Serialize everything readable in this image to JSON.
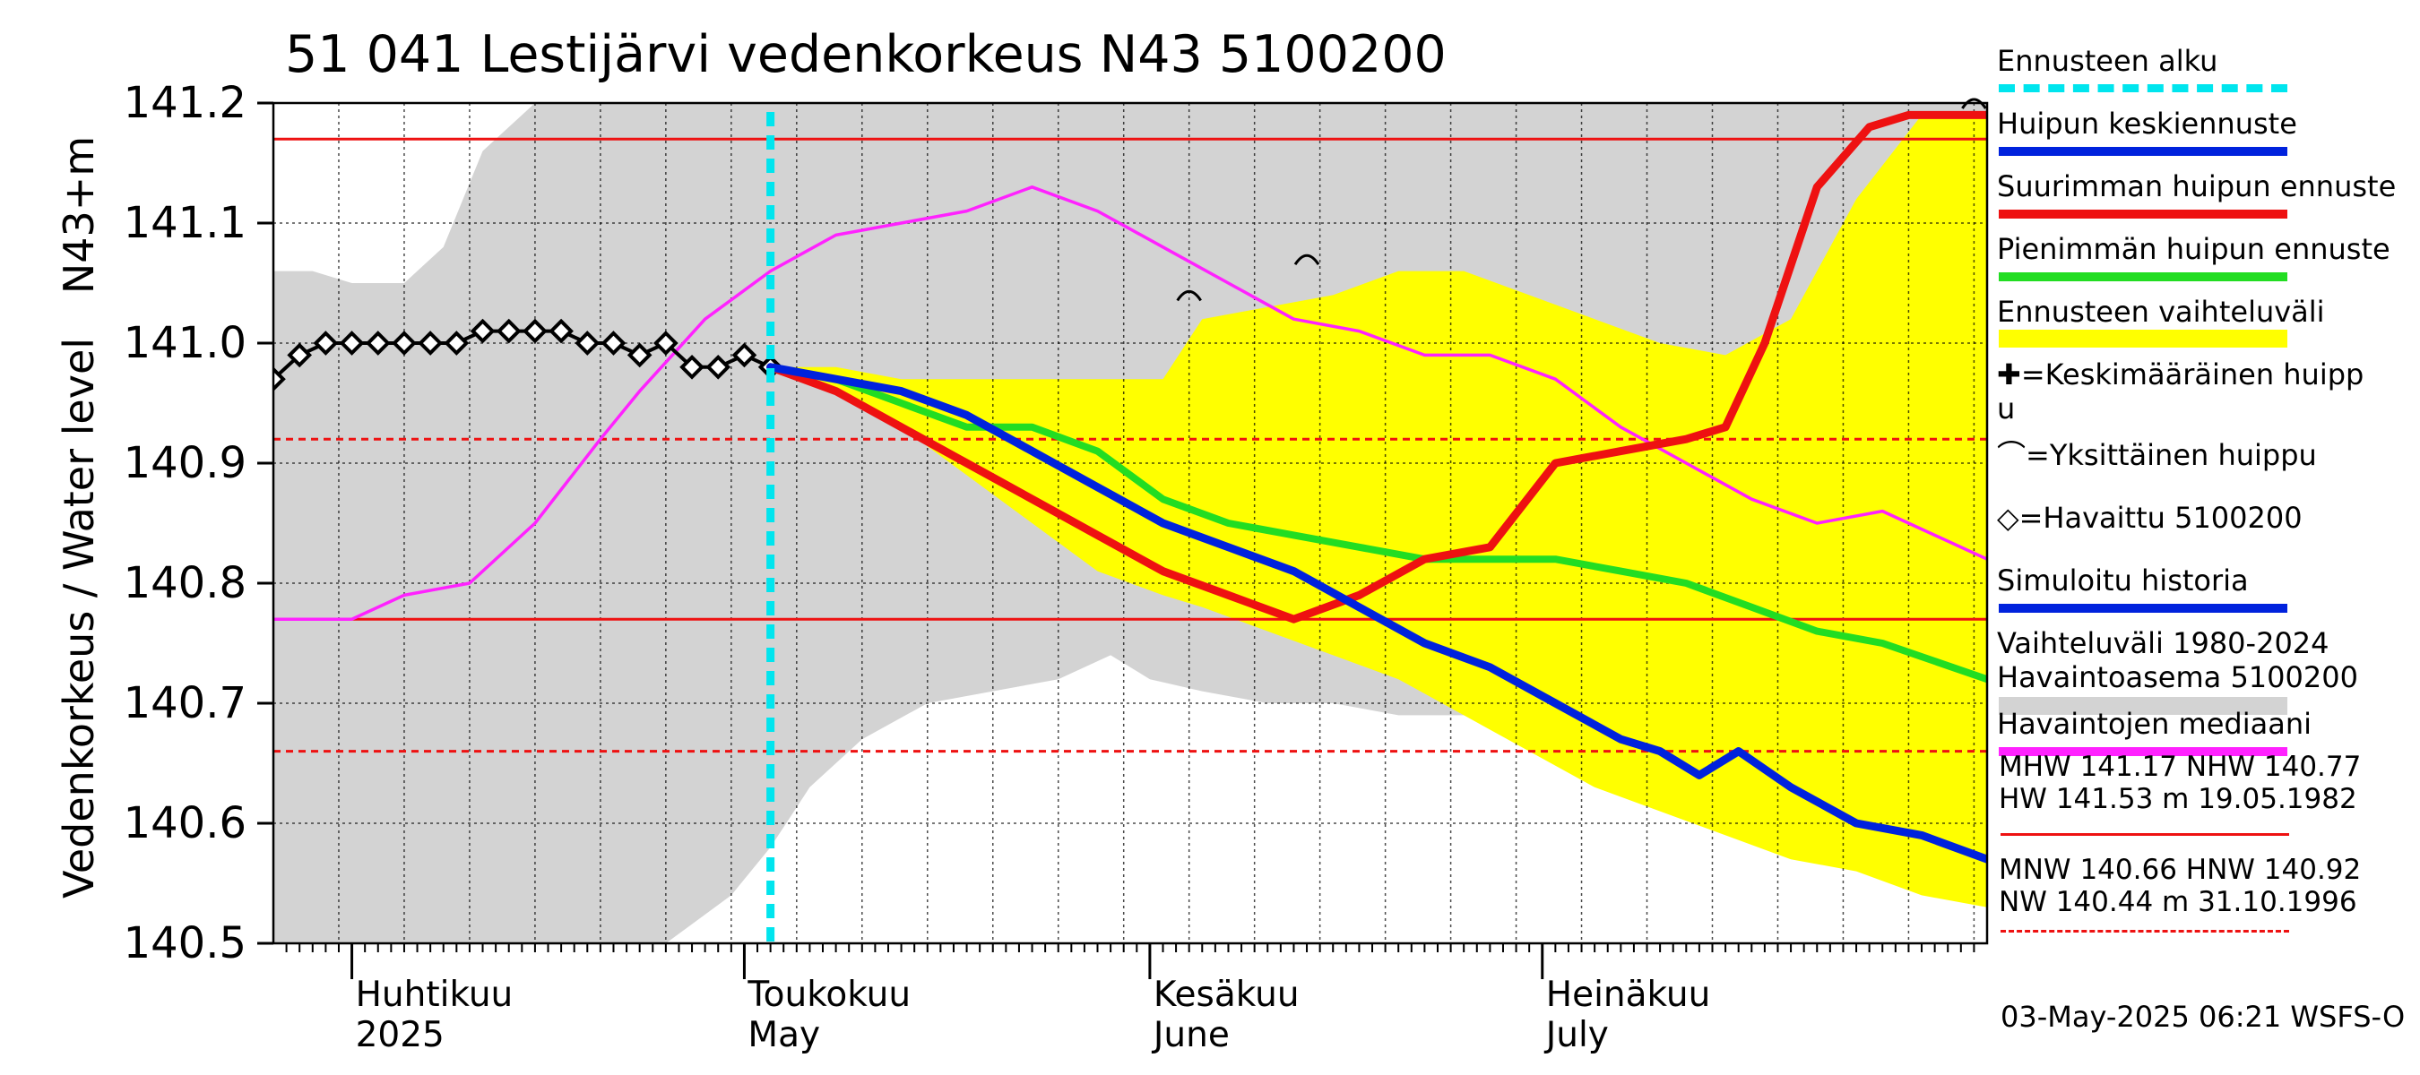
{
  "title": "51 041 Lestijärvi vedenkorkeus N43 5100200",
  "ylabel_outer": "Vedenkorkeus / Water level",
  "ylabel_inner": "N43+m",
  "footer": "03-May-2025 06:21 WSFS-O",
  "month_labels": [
    {
      "fi": "Huhtikuu",
      "en": "2025"
    },
    {
      "fi": "Toukokuu",
      "en": "May"
    },
    {
      "fi": "Kesäkuu",
      "en": "June"
    },
    {
      "fi": "Heinäkuu",
      "en": "July"
    }
  ],
  "legend": {
    "items": [
      {
        "label": "Ennusteen alku",
        "color": "#00e5ee",
        "style": "dashed"
      },
      {
        "label": "Huipun keskiennuste",
        "color": "#0022dd",
        "style": "solid"
      },
      {
        "label": "Suurimman huipun ennuste",
        "color": "#ee1111",
        "style": "solid"
      },
      {
        "label": "Pienimmän huipun ennuste",
        "color": "#22dd22",
        "style": "solid"
      },
      {
        "label": "Ennusteen vaihteluväli",
        "color": "#ffff00",
        "style": "band"
      },
      {
        "label": "✚=Keskimääräinen huipp",
        "label2": "u",
        "color": "#000000",
        "style": "none"
      },
      {
        "label": "⌒=Yksittäinen huippu",
        "color": "#000000",
        "style": "none"
      },
      {
        "label": "◇=Havaittu 5100200",
        "color": "#000000",
        "style": "none"
      },
      {
        "label": "Simuloitu historia",
        "color": "#0022dd",
        "style": "solid"
      },
      {
        "label": "Vaihteluväli 1980-2024",
        "label2": " Havaintoasema 5100200",
        "color": "#d3d3d3",
        "style": "band"
      },
      {
        "label": "Havaintojen mediaani",
        "color": "#ff22ff",
        "style": "solid"
      }
    ],
    "stats_high": [
      "MHW 141.17 NHW 140.77",
      "HW 141.53 m 19.05.1982"
    ],
    "stats_low": [
      "MNW 140.66 HNW 140.92",
      "NW 140.44 m 31.10.1996"
    ]
  },
  "chart_data": {
    "type": "line",
    "title": "51 041 Lestijärvi vedenkorkeus N43 5100200",
    "ylabel": "Vedenkorkeus / Water level N43+m",
    "ylim": [
      140.5,
      141.2
    ],
    "yticks": [
      140.5,
      140.6,
      140.7,
      140.8,
      140.9,
      141.0,
      141.1,
      141.2
    ],
    "xlim": [
      "2025-03-26",
      "2025-08-04"
    ],
    "forecast_start": "2025-05-03",
    "reference_lines": [
      {
        "name": "MHW",
        "value": 141.17,
        "style": "solid",
        "color": "#ee1111"
      },
      {
        "name": "NHW",
        "value": 140.77,
        "style": "solid",
        "color": "#ee1111"
      },
      {
        "name": "HNW",
        "value": 140.92,
        "style": "dashed",
        "color": "#ee1111"
      },
      {
        "name": "MNW",
        "value": 140.66,
        "style": "dashed",
        "color": "#ee1111"
      }
    ],
    "bands": [
      {
        "name": "Vaihteluväli 1980-2024",
        "color": "#d3d3d3",
        "x": [
          "2025-03-26",
          "2025-03-29",
          "2025-04-01",
          "2025-04-05",
          "2025-04-08",
          "2025-04-11",
          "2025-04-15",
          "2025-04-20",
          "2025-04-25",
          "2025-04-30",
          "2025-05-03",
          "2025-05-06",
          "2025-05-10",
          "2025-05-15",
          "2025-05-20",
          "2025-05-25",
          "2025-05-29",
          "2025-06-01",
          "2025-06-05",
          "2025-06-10",
          "2025-06-15",
          "2025-06-20",
          "2025-06-25",
          "2025-06-30",
          "2025-07-05",
          "2025-07-10",
          "2025-07-15",
          "2025-07-20",
          "2025-07-25",
          "2025-07-30",
          "2025-08-04"
        ],
        "upper": [
          141.06,
          141.06,
          141.05,
          141.05,
          141.08,
          141.16,
          141.2,
          141.2,
          141.2,
          141.2,
          141.2,
          141.2,
          141.2,
          141.2,
          141.2,
          141.2,
          141.2,
          141.2,
          141.2,
          141.2,
          141.2,
          141.2,
          141.2,
          141.2,
          141.2,
          141.2,
          141.2,
          141.2,
          141.2,
          141.2,
          141.2
        ],
        "lower": [
          140.5,
          140.5,
          140.5,
          140.5,
          140.5,
          140.5,
          140.5,
          140.5,
          140.5,
          140.54,
          140.58,
          140.63,
          140.67,
          140.7,
          140.71,
          140.72,
          140.74,
          140.72,
          140.71,
          140.7,
          140.7,
          140.69,
          140.69,
          140.67,
          140.66,
          140.64,
          140.62,
          140.61,
          140.6,
          140.59,
          140.59
        ]
      },
      {
        "name": "Ennusteen vaihteluväli",
        "color": "#ffff00",
        "x": [
          "2025-05-03",
          "2025-05-08",
          "2025-05-13",
          "2025-05-18",
          "2025-05-23",
          "2025-05-28",
          "2025-06-02",
          "2025-06-05",
          "2025-06-10",
          "2025-06-15",
          "2025-06-20",
          "2025-06-25",
          "2025-06-30",
          "2025-07-05",
          "2025-07-10",
          "2025-07-15",
          "2025-07-20",
          "2025-07-25",
          "2025-07-30",
          "2025-08-04"
        ],
        "upper": [
          140.98,
          140.98,
          140.97,
          140.97,
          140.97,
          140.97,
          140.97,
          141.02,
          141.03,
          141.04,
          141.06,
          141.06,
          141.04,
          141.02,
          141.0,
          140.99,
          141.02,
          141.12,
          141.19,
          141.19
        ],
        "lower": [
          140.98,
          140.96,
          140.93,
          140.89,
          140.85,
          140.81,
          140.79,
          140.78,
          140.76,
          140.74,
          140.72,
          140.69,
          140.66,
          140.63,
          140.61,
          140.59,
          140.57,
          140.56,
          140.54,
          140.53
        ]
      }
    ],
    "series": [
      {
        "name": "Havaintojen mediaani",
        "color": "#ff22ff",
        "x": [
          "2025-03-26",
          "2025-04-01",
          "2025-04-05",
          "2025-04-10",
          "2025-04-15",
          "2025-04-20",
          "2025-04-23",
          "2025-04-28",
          "2025-05-03",
          "2025-05-08",
          "2025-05-13",
          "2025-05-18",
          "2025-05-23",
          "2025-05-28",
          "2025-06-02",
          "2025-06-07",
          "2025-06-12",
          "2025-06-17",
          "2025-06-22",
          "2025-06-27",
          "2025-07-02",
          "2025-07-07",
          "2025-07-12",
          "2025-07-17",
          "2025-07-22",
          "2025-07-27",
          "2025-08-04"
        ],
        "values": [
          140.77,
          140.77,
          140.79,
          140.8,
          140.85,
          140.92,
          140.96,
          141.02,
          141.06,
          141.09,
          141.1,
          141.11,
          141.13,
          141.11,
          141.08,
          141.05,
          141.02,
          141.01,
          140.99,
          140.99,
          140.97,
          140.93,
          140.9,
          140.87,
          140.85,
          140.86,
          140.82
        ]
      },
      {
        "name": "Havaittu 5100200",
        "color": "#000000",
        "marker": "diamond",
        "x": [
          "2025-03-26",
          "2025-03-28",
          "2025-03-30",
          "2025-04-01",
          "2025-04-03",
          "2025-04-05",
          "2025-04-07",
          "2025-04-09",
          "2025-04-11",
          "2025-04-13",
          "2025-04-15",
          "2025-04-17",
          "2025-04-19",
          "2025-04-21",
          "2025-04-23",
          "2025-04-25",
          "2025-04-27",
          "2025-04-29",
          "2025-05-01",
          "2025-05-03"
        ],
        "values": [
          140.97,
          140.99,
          141.0,
          141.0,
          141.0,
          141.0,
          141.0,
          141.0,
          141.01,
          141.01,
          141.01,
          141.01,
          141.0,
          141.0,
          140.99,
          141.0,
          140.98,
          140.98,
          140.99,
          140.98
        ]
      },
      {
        "name": "Huipun keskiennuste",
        "color": "#0022dd",
        "x": [
          "2025-05-03",
          "2025-05-08",
          "2025-05-13",
          "2025-05-18",
          "2025-05-23",
          "2025-05-28",
          "2025-06-02",
          "2025-06-07",
          "2025-06-12",
          "2025-06-17",
          "2025-06-22",
          "2025-06-27",
          "2025-07-02",
          "2025-07-07",
          "2025-07-10",
          "2025-07-13",
          "2025-07-16",
          "2025-07-20",
          "2025-07-25",
          "2025-07-30",
          "2025-08-04"
        ],
        "values": [
          140.98,
          140.97,
          140.96,
          140.94,
          140.91,
          140.88,
          140.85,
          140.83,
          140.81,
          140.78,
          140.75,
          140.73,
          140.7,
          140.67,
          140.66,
          140.64,
          140.66,
          140.63,
          140.6,
          140.59,
          140.57
        ]
      },
      {
        "name": "Suurimman huipun ennuste",
        "color": "#ee1111",
        "x": [
          "2025-05-03",
          "2025-05-08",
          "2025-05-13",
          "2025-05-18",
          "2025-05-23",
          "2025-05-28",
          "2025-06-02",
          "2025-06-07",
          "2025-06-12",
          "2025-06-17",
          "2025-06-22",
          "2025-06-27",
          "2025-07-02",
          "2025-07-07",
          "2025-07-12",
          "2025-07-15",
          "2025-07-18",
          "2025-07-22",
          "2025-07-26",
          "2025-07-29",
          "2025-08-04"
        ],
        "values": [
          140.98,
          140.96,
          140.93,
          140.9,
          140.87,
          140.84,
          140.81,
          140.79,
          140.77,
          140.79,
          140.82,
          140.83,
          140.9,
          140.91,
          140.92,
          140.93,
          141.0,
          141.13,
          141.18,
          141.19,
          141.19
        ]
      },
      {
        "name": "Pienimmän huipun ennuste",
        "color": "#22dd22",
        "x": [
          "2025-05-03",
          "2025-05-08",
          "2025-05-13",
          "2025-05-18",
          "2025-05-23",
          "2025-05-28",
          "2025-06-02",
          "2025-06-07",
          "2025-06-12",
          "2025-06-17",
          "2025-06-22",
          "2025-06-27",
          "2025-07-02",
          "2025-07-07",
          "2025-07-12",
          "2025-07-17",
          "2025-07-22",
          "2025-07-27",
          "2025-08-04"
        ],
        "values": [
          140.98,
          140.97,
          140.95,
          140.93,
          140.93,
          140.91,
          140.87,
          140.85,
          140.84,
          140.83,
          140.82,
          140.82,
          140.82,
          140.81,
          140.8,
          140.78,
          140.76,
          140.75,
          140.72
        ]
      }
    ],
    "peak_markers": [
      {
        "x": "2025-06-04",
        "y": 141.04
      },
      {
        "x": "2025-06-13",
        "y": 141.07
      },
      {
        "x": "2025-08-03",
        "y": 141.2
      }
    ]
  }
}
